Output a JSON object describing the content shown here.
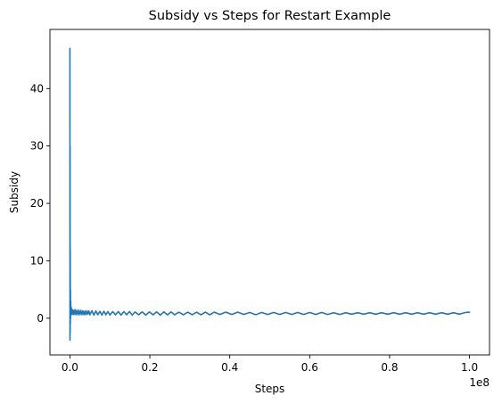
{
  "chart_data": {
    "type": "line",
    "title": "Subsidy vs Steps for Restart Example",
    "xlabel": "Steps",
    "ylabel": "Subsidy",
    "x_offset_label": "1e8",
    "xlim": [
      -0.05,
      1.05
    ],
    "ylim": [
      -6.4,
      50.3
    ],
    "x_ticks": [
      0.0,
      0.2,
      0.4,
      0.6,
      0.8,
      1.0
    ],
    "x_tick_labels": [
      "0.0",
      "0.2",
      "0.4",
      "0.6",
      "0.8",
      "1.0"
    ],
    "y_ticks": [
      0,
      10,
      20,
      30,
      40
    ],
    "y_tick_labels": [
      "0",
      "10",
      "20",
      "30",
      "40"
    ],
    "grid": false,
    "legend": "none",
    "color": "#1f77b4",
    "series": [
      {
        "x": [
          0.0,
          0.0002,
          0.0004,
          0.0006,
          0.0008,
          0.001,
          0.0013,
          0.0016,
          0.002,
          0.0025,
          0.003,
          0.004,
          0.005,
          0.006,
          0.008,
          0.01,
          0.0125,
          0.015,
          0.0175,
          0.02,
          0.0225,
          0.025,
          0.0275,
          0.03,
          0.0325,
          0.035,
          0.0375,
          0.04,
          0.0425,
          0.045,
          0.0475,
          0.05,
          0.055,
          0.06,
          0.065,
          0.07,
          0.075,
          0.08,
          0.085,
          0.09,
          0.095,
          0.1,
          0.107,
          0.114,
          0.121,
          0.128,
          0.135,
          0.142,
          0.149,
          0.156,
          0.163,
          0.172,
          0.181,
          0.19,
          0.199,
          0.208,
          0.217,
          0.226,
          0.235,
          0.244,
          0.253,
          0.262,
          0.273,
          0.284,
          0.295,
          0.306,
          0.317,
          0.328,
          0.339,
          0.35,
          0.361,
          0.375,
          0.39,
          0.405,
          0.42,
          0.435,
          0.45,
          0.465,
          0.48,
          0.495,
          0.51,
          0.525,
          0.54,
          0.555,
          0.57,
          0.585,
          0.6,
          0.615,
          0.63,
          0.645,
          0.66,
          0.675,
          0.69,
          0.705,
          0.72,
          0.735,
          0.75,
          0.765,
          0.78,
          0.795,
          0.81,
          0.825,
          0.84,
          0.855,
          0.87,
          0.885,
          0.9,
          0.915,
          0.93,
          0.945,
          0.96,
          0.975,
          0.99,
          1.0
        ],
        "y": [
          47.0,
          -3.8,
          30.0,
          -2.5,
          12.0,
          -1.0,
          5.0,
          0.0,
          3.0,
          0.5,
          2.0,
          0.9,
          1.6,
          0.7,
          1.4,
          0.6,
          1.5,
          0.6,
          1.4,
          0.6,
          1.4,
          0.6,
          1.35,
          0.6,
          1.3,
          0.6,
          1.25,
          0.6,
          1.3,
          0.7,
          1.25,
          0.6,
          1.3,
          0.55,
          1.25,
          0.6,
          1.2,
          0.55,
          1.2,
          0.6,
          1.15,
          0.55,
          1.15,
          0.6,
          1.15,
          0.55,
          1.15,
          0.6,
          1.15,
          0.55,
          1.1,
          0.6,
          1.1,
          0.55,
          1.1,
          0.6,
          1.1,
          0.55,
          1.1,
          0.6,
          1.1,
          0.6,
          1.05,
          0.6,
          1.05,
          0.6,
          1.05,
          0.6,
          1.05,
          0.6,
          1.05,
          0.65,
          1.05,
          0.65,
          1.05,
          0.65,
          1.0,
          0.6,
          1.0,
          0.65,
          1.0,
          0.65,
          1.0,
          0.65,
          1.0,
          0.65,
          1.0,
          0.65,
          1.0,
          0.65,
          0.95,
          0.65,
          0.95,
          0.7,
          0.95,
          0.7,
          0.95,
          0.7,
          0.95,
          0.7,
          0.95,
          0.7,
          0.95,
          0.7,
          0.95,
          0.7,
          0.95,
          0.7,
          0.95,
          0.7,
          0.95,
          0.7,
          1.0,
          1.05
        ]
      }
    ]
  }
}
